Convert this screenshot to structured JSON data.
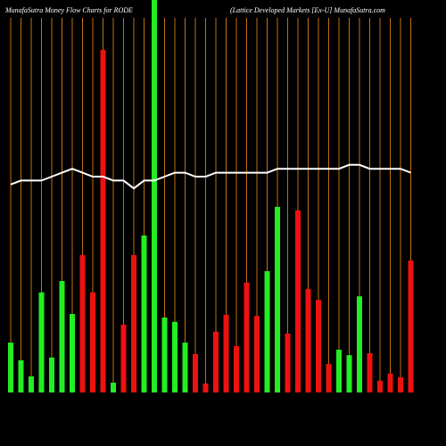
{
  "chart_data": {
    "type": "bar",
    "title": "MunafaSutra  Money Flow  Charts for RODE",
    "subtitle": "(Lattice   Developed Markets [Ex-U] MunafaSutra.com",
    "categories": [
      null,
      null,
      null,
      null,
      null,
      null,
      null,
      null,
      null,
      null,
      null,
      null,
      null,
      null,
      null,
      null,
      null,
      null,
      null,
      null,
      null,
      null,
      null,
      null,
      null,
      null,
      null,
      null,
      null,
      null,
      null,
      null,
      null,
      null,
      null,
      null,
      null,
      null,
      null,
      null
    ],
    "values": [
      12.7,
      8.2,
      4.1,
      25.5,
      8.9,
      28.4,
      20,
      35,
      25.5,
      87.3,
      2.5,
      17.3,
      35,
      40,
      100,
      19.1,
      18,
      12.7,
      9.8,
      2.3,
      15.5,
      19.8,
      11.8,
      28,
      19.5,
      30.9,
      47.3,
      15,
      46.4,
      26.4,
      23.6,
      7.3,
      10.9,
      9.5,
      24.5,
      10,
      3,
      4.8,
      3.9,
      33.6
    ],
    "colors": [
      "#22ee22",
      "#22ee22",
      "#22ee22",
      "#22ee22",
      "#22ee22",
      "#22ee22",
      "#22ee22",
      "#ee1111",
      "#ee1111",
      "#ee1111",
      "#22ee22",
      "#ee1111",
      "#ee1111",
      "#22ee22",
      "#22ee22",
      "#22ee22",
      "#22ee22",
      "#22ee22",
      "#ee1111",
      "#ee1111",
      "#ee1111",
      "#ee1111",
      "#ee1111",
      "#ee1111",
      "#ee1111",
      "#22ee22",
      "#22ee22",
      "#ee1111",
      "#ee1111",
      "#ee1111",
      "#ee1111",
      "#ee1111",
      "#22ee22",
      "#22ee22",
      "#22ee22",
      "#ee1111",
      "#ee1111",
      "#ee1111",
      "#ee1111",
      "#ee1111"
    ],
    "line": {
      "color": "#ffffff",
      "values": [
        53,
        54,
        54,
        54,
        55,
        56,
        57,
        56,
        55,
        55,
        54,
        54,
        52,
        54,
        54,
        55,
        56,
        56,
        55,
        55,
        56,
        56,
        56,
        56,
        56,
        56,
        57,
        57,
        57,
        57,
        57,
        57,
        57,
        58,
        58,
        57,
        57,
        57,
        57,
        56
      ]
    },
    "ylim": [
      0,
      100
    ],
    "grid_color": "#c07010"
  }
}
